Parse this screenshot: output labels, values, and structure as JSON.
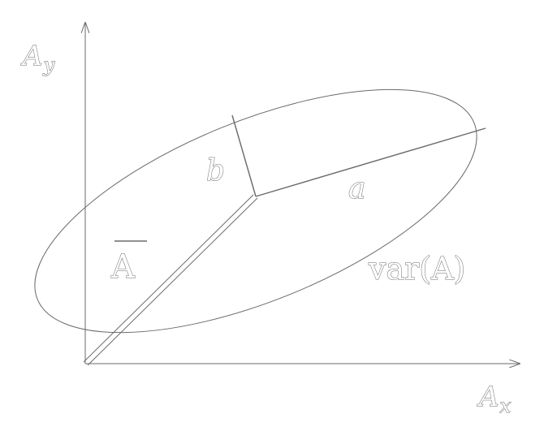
{
  "axes": {
    "y_label_main": "A",
    "y_label_sub": "y",
    "x_label_main": "A",
    "x_label_sub": "x"
  },
  "labels": {
    "semi_minor": "b",
    "semi_major": "a",
    "mean": "A",
    "variance": "var(A)"
  },
  "colors": {
    "stroke": "#6a6a6a",
    "background": "#ffffff"
  }
}
